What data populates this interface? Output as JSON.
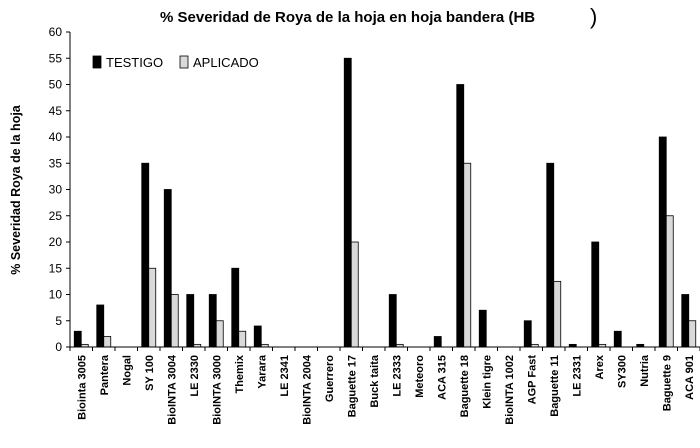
{
  "chart_data": {
    "type": "bar",
    "title": "% Severidad de Roya de la hoja en hoja bandera (HB",
    "title_suffix": ")",
    "xlabel": "",
    "ylabel": "% Severidad Roya de la hoja",
    "ylim": [
      0,
      60
    ],
    "yticks": [
      0,
      5,
      10,
      15,
      20,
      25,
      30,
      35,
      40,
      45,
      50,
      55,
      60
    ],
    "grid": false,
    "legend_position": "top-left",
    "categories": [
      "Biointa 3005",
      "Pantera",
      "Nogal",
      "SY 100",
      "BioINTA 3004",
      "LE 2330",
      "BioINTA 3000",
      "Themix",
      "Yarara",
      "LE 2341",
      "BioINTA 2004",
      "Guerrero",
      "Baguette 17",
      "Buck taita",
      "LE 2333",
      "Meteoro",
      "ACA 315",
      "Baguette 18",
      "Klein tigre",
      "BioINTA 1002",
      "AGP Fast",
      "Baguette 11",
      "LE 2331",
      "Arex",
      "SY300",
      "Nutria",
      "Baguette 9",
      "ACA 901"
    ],
    "series": [
      {
        "name": "TESTIGO",
        "color": "#000000",
        "values": [
          3,
          8,
          0,
          35,
          30,
          10,
          10,
          15,
          4,
          0,
          0,
          0,
          55,
          0,
          10,
          0,
          2,
          50,
          7,
          0,
          5,
          35,
          0.5,
          20,
          3,
          0.5,
          40,
          10
        ]
      },
      {
        "name": "APLICADO",
        "color": "#d9d9d9",
        "values": [
          0.5,
          2,
          0,
          15,
          10,
          0.5,
          5,
          3,
          0.5,
          0,
          0,
          0,
          20,
          0,
          0.5,
          0,
          0,
          35,
          0,
          0,
          0.5,
          12.5,
          0,
          0.5,
          0,
          0,
          25,
          5
        ]
      }
    ]
  }
}
